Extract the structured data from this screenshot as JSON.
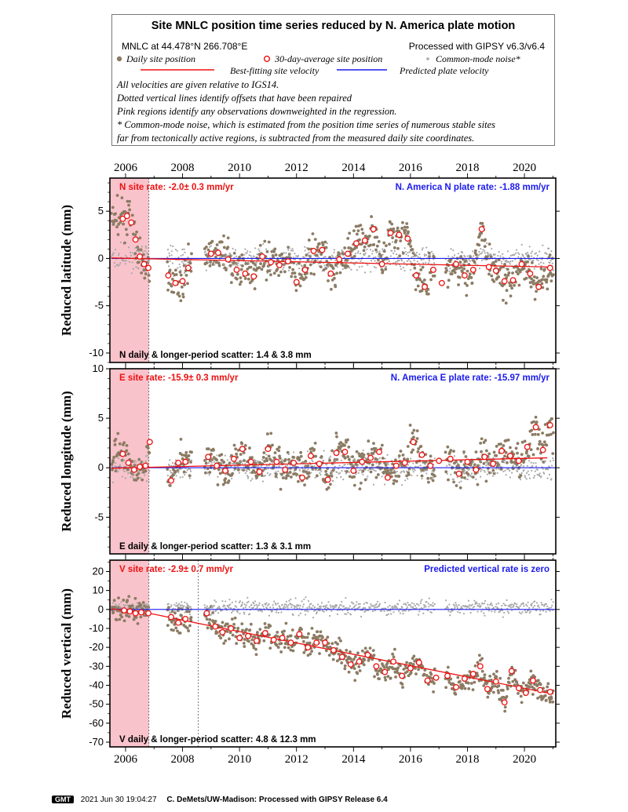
{
  "legend": {
    "title": "Site MNLC position time series reduced by N. America plate motion",
    "site_coords": "MNLC at 44.478°N 266.708°E",
    "processing": "Processed with GIPSY v6.3/v6.4",
    "daily_label": "Daily site position",
    "avg_label": "30-day-average site position",
    "cm_label": "Common-mode noise*",
    "best_fit_label": "Best-fitting site velocity",
    "predicted_label": "Predicted plate velocity",
    "notes": [
      "All velocities are given relative to IGS14.",
      "Dotted vertical lines identify offsets that have been repaired",
      "Pink regions identify any observations downweighted in the regression.",
      "* Common-mode noise, which is estimated from the position time series of numerous stable sites",
      "far from tectonically active regions, is subtracted from the measured daily site coordinates."
    ]
  },
  "colors": {
    "daily": "#8b7b63",
    "avg_edge": "#ee1111",
    "common_mode": "#a8a8a8",
    "best_fit": "#ee1111",
    "predicted": "#1a1aee",
    "pink": "#f9c3cb",
    "site_rate_text": "#ee1111",
    "plate_rate_text": "#1a1aee"
  },
  "chart_data": [
    {
      "type": "scatter",
      "name": "north",
      "ylabel": "Reduced latitude (mm)",
      "ylim": [
        -11,
        8.5
      ],
      "yticks": [
        5,
        0,
        -5,
        -10
      ],
      "site_rate": "N site rate:  -2.0± 0.3 mm/yr",
      "plate_rate": "N. America N plate rate: -1.88 mm/yr",
      "scatter": "N daily & longer-period scatter:   1.4 &   3.8 mm",
      "best_fit": {
        "x": [
          2005.5,
          2020.8
        ],
        "y": [
          0.05,
          -0.9
        ]
      },
      "predicted": {
        "x": [
          2005.5,
          2021.1
        ],
        "y": [
          0,
          0
        ]
      },
      "monthly": [
        {
          "x": 2005.9,
          "y": 4.2
        },
        {
          "x": 2006.05,
          "y": 4.5
        },
        {
          "x": 2006.2,
          "y": 3.8
        },
        {
          "x": 2006.35,
          "y": 2.0
        },
        {
          "x": 2006.5,
          "y": 0.2
        },
        {
          "x": 2006.65,
          "y": -0.6
        },
        {
          "x": 2006.8,
          "y": -1.0
        },
        {
          "x": 2007.5,
          "y": -1.8
        },
        {
          "x": 2007.75,
          "y": -2.6
        },
        {
          "x": 2008.0,
          "y": -2.4
        },
        {
          "x": 2008.2,
          "y": -1.0
        },
        {
          "x": 2009.0,
          "y": 0.5
        },
        {
          "x": 2009.25,
          "y": 0.6
        },
        {
          "x": 2009.6,
          "y": -0.1
        },
        {
          "x": 2009.9,
          "y": -1.2
        },
        {
          "x": 2010.2,
          "y": -1.6
        },
        {
          "x": 2010.5,
          "y": -1.9
        },
        {
          "x": 2010.8,
          "y": 0.2
        },
        {
          "x": 2011.1,
          "y": -0.4
        },
        {
          "x": 2011.4,
          "y": -0.7
        },
        {
          "x": 2011.7,
          "y": -0.3
        },
        {
          "x": 2012.0,
          "y": -2.5
        },
        {
          "x": 2012.3,
          "y": -1.2
        },
        {
          "x": 2012.6,
          "y": 0.8
        },
        {
          "x": 2012.9,
          "y": 0.9
        },
        {
          "x": 2013.2,
          "y": -1.6
        },
        {
          "x": 2013.5,
          "y": -0.1
        },
        {
          "x": 2013.8,
          "y": 0.5
        },
        {
          "x": 2014.1,
          "y": 1.6
        },
        {
          "x": 2014.4,
          "y": 1.9
        },
        {
          "x": 2014.7,
          "y": 3.1
        },
        {
          "x": 2015.0,
          "y": -0.6
        },
        {
          "x": 2015.3,
          "y": 2.7
        },
        {
          "x": 2015.6,
          "y": 2.5
        },
        {
          "x": 2015.9,
          "y": 2.1
        },
        {
          "x": 2016.2,
          "y": -1.8
        },
        {
          "x": 2016.5,
          "y": -3.0
        },
        {
          "x": 2016.8,
          "y": -1.2
        },
        {
          "x": 2017.1,
          "y": -2.6
        },
        {
          "x": 2017.6,
          "y": -0.6
        },
        {
          "x": 2017.9,
          "y": -1.8
        },
        {
          "x": 2018.2,
          "y": -1.2
        },
        {
          "x": 2018.5,
          "y": 3.1
        },
        {
          "x": 2018.75,
          "y": -0.9
        },
        {
          "x": 2019.0,
          "y": -1.3
        },
        {
          "x": 2019.3,
          "y": -2.4
        },
        {
          "x": 2019.6,
          "y": -2.3
        },
        {
          "x": 2019.9,
          "y": -0.6
        },
        {
          "x": 2020.2,
          "y": -1.6
        },
        {
          "x": 2020.5,
          "y": -3.0
        },
        {
          "x": 2020.9,
          "y": -1.0
        }
      ]
    },
    {
      "type": "scatter",
      "name": "east",
      "ylabel": "Reduced longitude (mm)",
      "ylim": [
        -8.7,
        10
      ],
      "yticks": [
        10,
        5,
        0,
        -5
      ],
      "site_rate": "E site rate: -15.9± 0.3 mm/yr",
      "plate_rate": "N. America E plate rate: -15.97 mm/yr",
      "scatter": "E daily & longer-period scatter:   1.3 &   3.1 mm",
      "best_fit": {
        "x": [
          2005.5,
          2020.8
        ],
        "y": [
          -0.05,
          1.0
        ]
      },
      "predicted": {
        "x": [
          2005.5,
          2021.1
        ],
        "y": [
          0,
          0
        ]
      },
      "monthly": [
        {
          "x": 2005.9,
          "y": 1.4
        },
        {
          "x": 2006.1,
          "y": 0.5
        },
        {
          "x": 2006.3,
          "y": -0.2
        },
        {
          "x": 2006.5,
          "y": 0.1
        },
        {
          "x": 2006.7,
          "y": 0.2
        },
        {
          "x": 2006.85,
          "y": 2.6
        },
        {
          "x": 2007.6,
          "y": -1.3
        },
        {
          "x": 2007.85,
          "y": 0.5
        },
        {
          "x": 2008.1,
          "y": 0.6
        },
        {
          "x": 2008.9,
          "y": 1.1
        },
        {
          "x": 2009.2,
          "y": 0.2
        },
        {
          "x": 2009.5,
          "y": -0.3
        },
        {
          "x": 2009.8,
          "y": 0.9
        },
        {
          "x": 2010.1,
          "y": 1.9
        },
        {
          "x": 2010.4,
          "y": 0.6
        },
        {
          "x": 2010.7,
          "y": -0.4
        },
        {
          "x": 2011.0,
          "y": 1.9
        },
        {
          "x": 2011.3,
          "y": 0.6
        },
        {
          "x": 2011.6,
          "y": -0.2
        },
        {
          "x": 2011.9,
          "y": 0.5
        },
        {
          "x": 2012.2,
          "y": -1.0
        },
        {
          "x": 2012.5,
          "y": 1.2
        },
        {
          "x": 2012.8,
          "y": 0.4
        },
        {
          "x": 2013.1,
          "y": -1.2
        },
        {
          "x": 2013.4,
          "y": 1.5
        },
        {
          "x": 2013.7,
          "y": 1.6
        },
        {
          "x": 2014.0,
          "y": -0.3
        },
        {
          "x": 2014.3,
          "y": 0.6
        },
        {
          "x": 2014.6,
          "y": 1.0
        },
        {
          "x": 2014.9,
          "y": 1.6
        },
        {
          "x": 2015.2,
          "y": -1.0
        },
        {
          "x": 2015.5,
          "y": 0.2
        },
        {
          "x": 2015.8,
          "y": 0.5
        },
        {
          "x": 2016.1,
          "y": 2.6
        },
        {
          "x": 2016.4,
          "y": 1.3
        },
        {
          "x": 2016.7,
          "y": 0.2
        },
        {
          "x": 2017.0,
          "y": 0.7
        },
        {
          "x": 2017.4,
          "y": 0.9
        },
        {
          "x": 2017.7,
          "y": -0.6
        },
        {
          "x": 2018.0,
          "y": 0.6
        },
        {
          "x": 2018.3,
          "y": -0.2
        },
        {
          "x": 2018.6,
          "y": 1.1
        },
        {
          "x": 2018.9,
          "y": 0.4
        },
        {
          "x": 2019.2,
          "y": 1.7
        },
        {
          "x": 2019.5,
          "y": 1.2
        },
        {
          "x": 2019.8,
          "y": 0.7
        },
        {
          "x": 2020.1,
          "y": 2.1
        },
        {
          "x": 2020.4,
          "y": 4.1
        },
        {
          "x": 2020.65,
          "y": 1.8
        },
        {
          "x": 2020.9,
          "y": 4.3
        }
      ]
    },
    {
      "type": "scatter",
      "name": "vertical",
      "ylabel": "Reduced vertical (mm)",
      "ylim": [
        -72.5,
        26
      ],
      "yticks": [
        20,
        10,
        0,
        -10,
        -20,
        -30,
        -40,
        -50,
        -60,
        -70
      ],
      "site_rate": "V site rate:  -2.9± 0.7 mm/yr",
      "plate_rate": "Predicted vertical rate is zero",
      "scatter": "V daily & longer-period scatter:   4.8 &  12.3 mm",
      "best_fit": {
        "x": [
          2005.5,
          2007.0,
          2008.7,
          2020.8
        ],
        "y": [
          0.3,
          -2.5,
          -7.8,
          -44.0
        ]
      },
      "predicted": {
        "x": [
          2005.5,
          2021.1
        ],
        "y": [
          0,
          0
        ]
      },
      "monthly": [
        {
          "x": 2005.95,
          "y": -0.5
        },
        {
          "x": 2006.15,
          "y": -1.0
        },
        {
          "x": 2006.35,
          "y": -2.0
        },
        {
          "x": 2006.55,
          "y": -1.5
        },
        {
          "x": 2006.8,
          "y": -2.0
        },
        {
          "x": 2007.6,
          "y": -4.0
        },
        {
          "x": 2007.85,
          "y": -7.0
        },
        {
          "x": 2008.1,
          "y": -5.0
        },
        {
          "x": 2008.85,
          "y": -2.0
        },
        {
          "x": 2009.15,
          "y": -9.0
        },
        {
          "x": 2009.4,
          "y": -12.0
        },
        {
          "x": 2009.7,
          "y": -10.0
        },
        {
          "x": 2010.0,
          "y": -15.0
        },
        {
          "x": 2010.3,
          "y": -14.0
        },
        {
          "x": 2010.6,
          "y": -16.5
        },
        {
          "x": 2010.9,
          "y": -12.5
        },
        {
          "x": 2011.2,
          "y": -16.0
        },
        {
          "x": 2011.5,
          "y": -15.0
        },
        {
          "x": 2011.8,
          "y": -17.5
        },
        {
          "x": 2012.1,
          "y": -13.0
        },
        {
          "x": 2012.4,
          "y": -20.0
        },
        {
          "x": 2012.7,
          "y": -17.5
        },
        {
          "x": 2013.0,
          "y": -17.5
        },
        {
          "x": 2013.3,
          "y": -21.5
        },
        {
          "x": 2013.6,
          "y": -25.0
        },
        {
          "x": 2013.9,
          "y": -29.0
        },
        {
          "x": 2014.2,
          "y": -27.5
        },
        {
          "x": 2014.5,
          "y": -24.0
        },
        {
          "x": 2014.8,
          "y": -30.0
        },
        {
          "x": 2015.1,
          "y": -33.0
        },
        {
          "x": 2015.4,
          "y": -27.5
        },
        {
          "x": 2015.7,
          "y": -35.0
        },
        {
          "x": 2016.0,
          "y": -31.0
        },
        {
          "x": 2016.3,
          "y": -28.0
        },
        {
          "x": 2016.6,
          "y": -37.5
        },
        {
          "x": 2016.9,
          "y": -36.0
        },
        {
          "x": 2017.3,
          "y": -35.0
        },
        {
          "x": 2017.6,
          "y": -41.0
        },
        {
          "x": 2017.9,
          "y": -36.5
        },
        {
          "x": 2018.2,
          "y": -34.0
        },
        {
          "x": 2018.45,
          "y": -30.0
        },
        {
          "x": 2018.7,
          "y": -42.0
        },
        {
          "x": 2019.0,
          "y": -38.0
        },
        {
          "x": 2019.3,
          "y": -49.0
        },
        {
          "x": 2019.55,
          "y": -32.5
        },
        {
          "x": 2019.8,
          "y": -41.5
        },
        {
          "x": 2020.05,
          "y": -44.0
        },
        {
          "x": 2020.3,
          "y": -37.5
        },
        {
          "x": 2020.55,
          "y": -42.5
        },
        {
          "x": 2020.9,
          "y": -43.5
        }
      ]
    }
  ],
  "x_axis": {
    "range": [
      2005.45,
      2021.1
    ],
    "ticks": [
      2006,
      2008,
      2010,
      2012,
      2014,
      2016,
      2018,
      2020
    ],
    "pink_region": [
      2005.45,
      2006.82
    ],
    "offset_lines": [
      2006.82,
      2008.55
    ]
  },
  "footer": {
    "logo": "GMT",
    "timestamp": "2021 Jun 30 19:04:27",
    "credit": "C. DeMets/UW-Madison: Processed with GIPSY Release 6.4"
  }
}
